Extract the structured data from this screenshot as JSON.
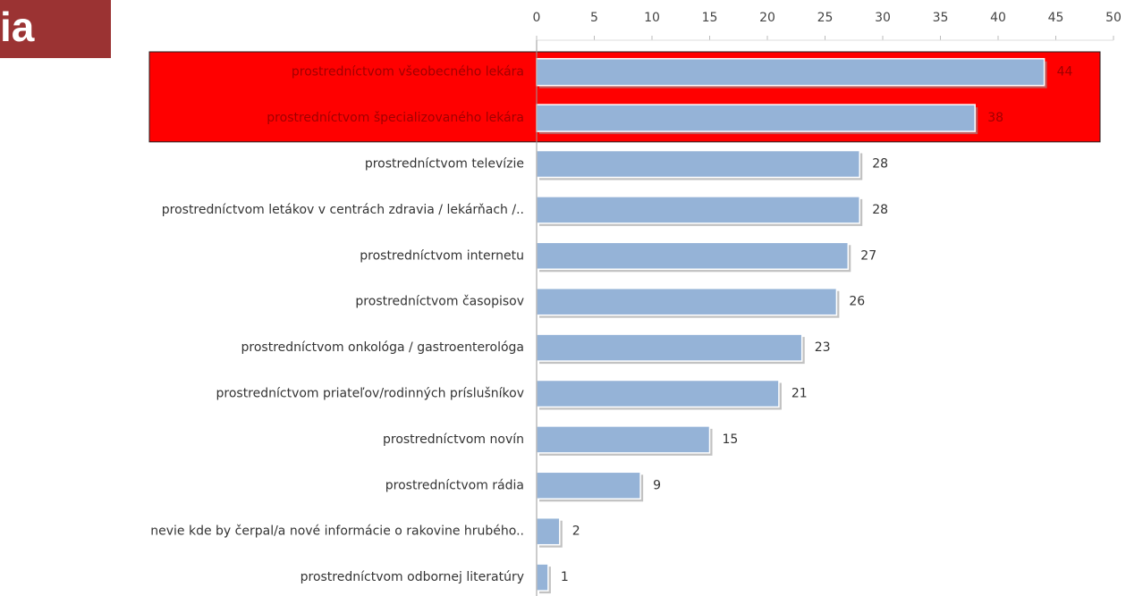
{
  "chart_data": {
    "type": "bar",
    "orientation": "horizontal",
    "title": "ia",
    "categories": [
      "prostredníctvom všeobecného lekára",
      "prostredníctvom špecializovaného lekára",
      "prostredníctvom televízie",
      "prostredníctvom letákov v centrách zdravia / lekárňach /..",
      "prostredníctvom internetu",
      "prostredníctvom časopisov",
      "prostredníctvom onkológa / gastroenterológa",
      "prostredníctvom priateľov/rodinných príslušníkov",
      "prostredníctvom novín",
      "prostredníctvom rádia",
      "nevie kde by čerpal/a nové informácie o rakovine hrubého..",
      "prostredníctvom odbornej literatúry"
    ],
    "values": [
      44,
      38,
      28,
      28,
      27,
      26,
      23,
      21,
      15,
      9,
      2,
      1
    ],
    "color": "#95b3d7",
    "xlim": [
      0,
      50
    ],
    "xticks": [
      0,
      5,
      10,
      15,
      20,
      25,
      30,
      35,
      40,
      45,
      50
    ],
    "highlight": {
      "indices": [
        0,
        1
      ],
      "color": "#ff0000"
    }
  }
}
